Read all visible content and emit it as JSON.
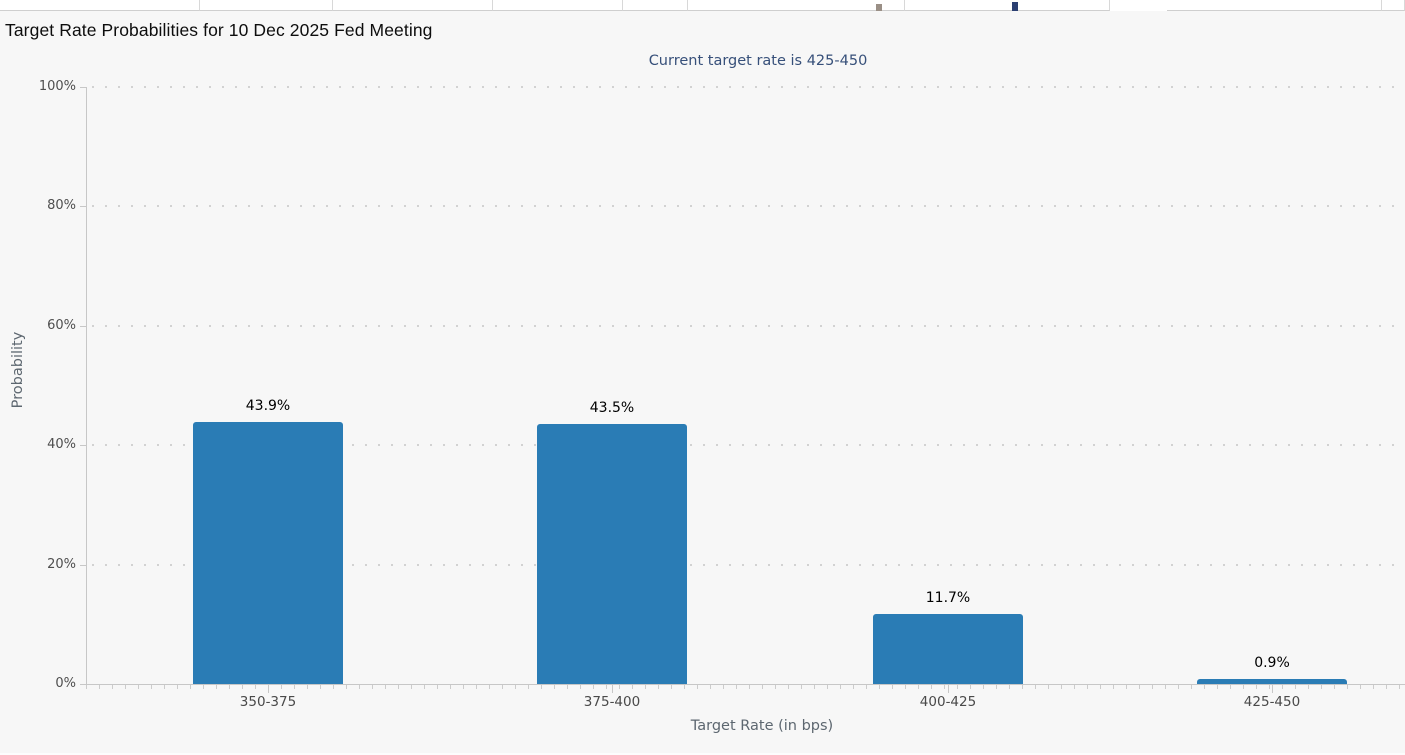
{
  "header": {
    "title": "Target Rate Probabilities for 10 Dec 2025 Fed Meeting",
    "subtitle": "Current target rate is 425-450"
  },
  "chart_data": {
    "type": "bar",
    "title": "Target Rate Probabilities for 10 Dec 2025 Fed Meeting",
    "subtitle": "Current target rate is 425-450",
    "categories": [
      "350-375",
      "375-400",
      "400-425",
      "425-450"
    ],
    "values": [
      43.9,
      43.5,
      11.7,
      0.9
    ],
    "value_labels": [
      "43.9%",
      "43.5%",
      "11.7%",
      "0.9%"
    ],
    "xlabel": "Target Rate (in bps)",
    "ylabel": "Probability",
    "ylim": [
      0,
      100
    ],
    "ytick_values": [
      0,
      20,
      40,
      60,
      80,
      100
    ],
    "ytick_labels": [
      "0%",
      "20%",
      "40%",
      "60%",
      "80%",
      "100%"
    ],
    "grid": "horizontal-dotted",
    "legend": "none",
    "bar_color": "#2a7cb5"
  },
  "colors": {
    "chart_background": "#f7f7f7",
    "bar": "#2a7cb5",
    "title_text": "#0d0d0d",
    "subtitle_text": "#37507a",
    "axis_line": "#c7c7c7",
    "gridline_dots": "#d2d2d2",
    "tick_label_text": "#4a4a4a",
    "axis_title_text": "#5d6770"
  }
}
